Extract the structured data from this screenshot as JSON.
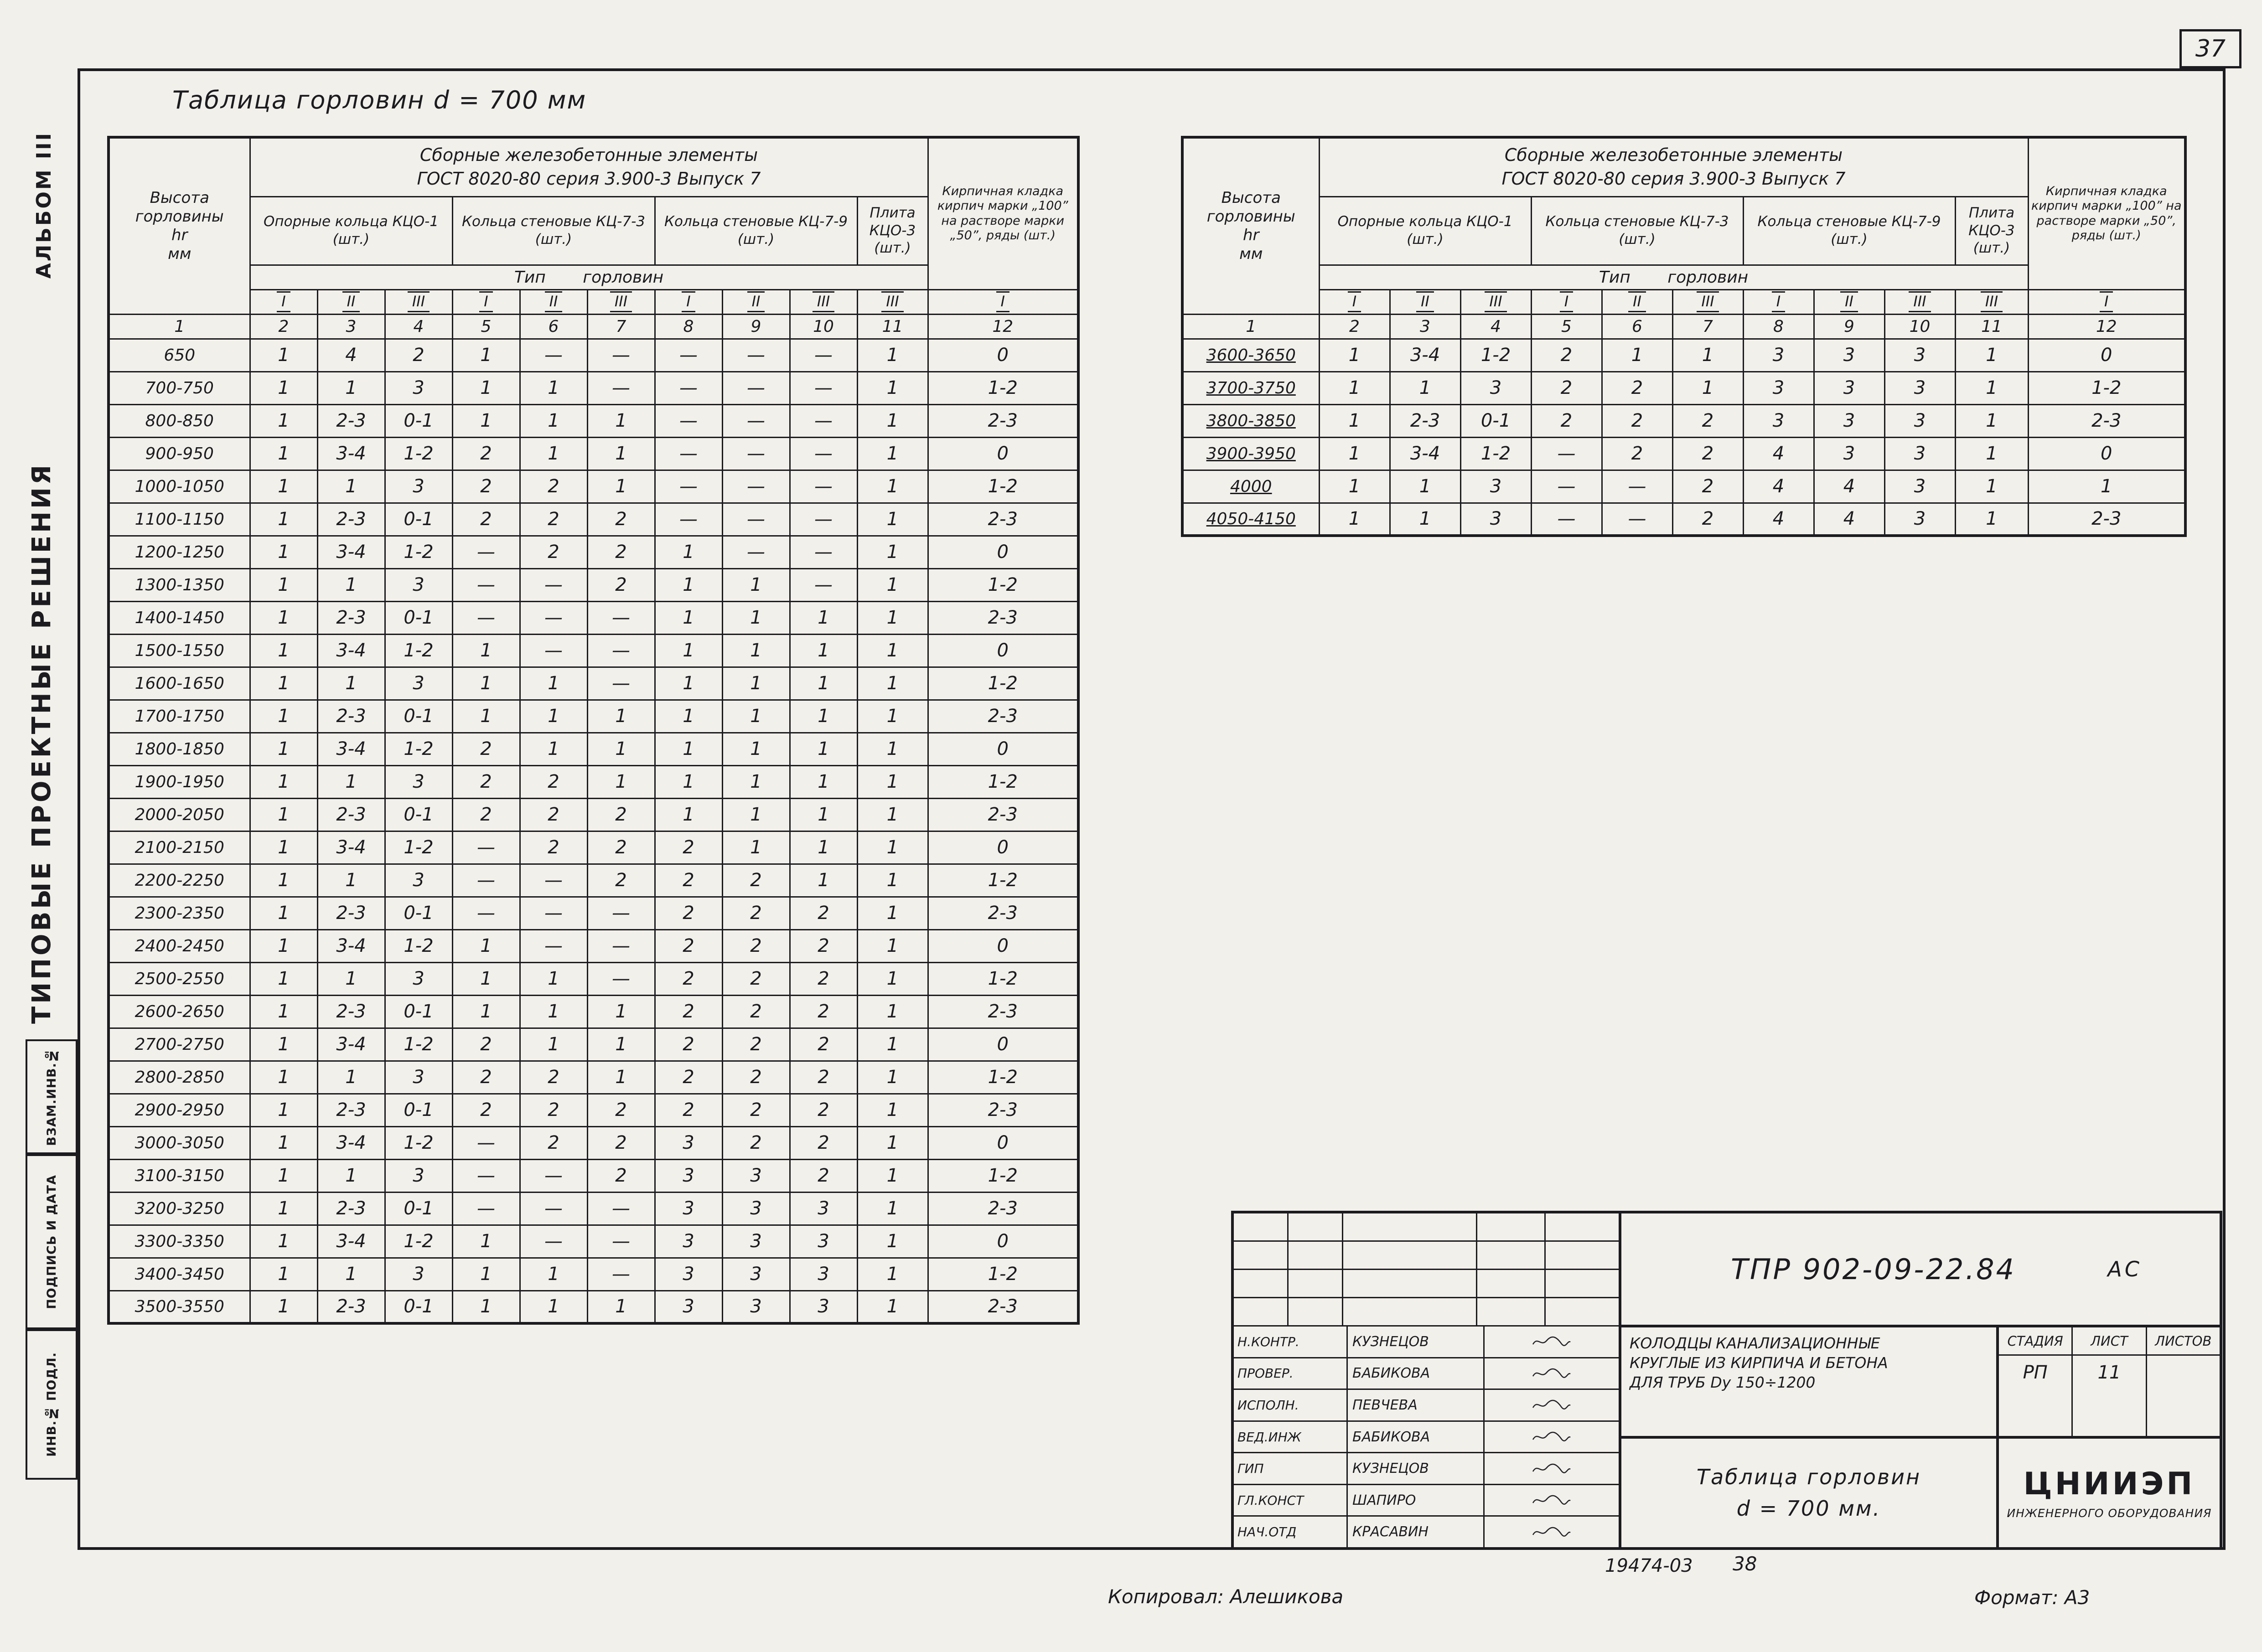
{
  "page_number": "37",
  "margin": {
    "album": "АЛЬБОМ III",
    "series": "ТИПОВЫЕ ПРОЕКТНЫЕ РЕШЕНИЯ",
    "stamp_boxes": [
      "ВЗАМ.ИНВ.№",
      "ПОДПИСЬ И ДАТА",
      "ИНВ.№ ПОДЛ."
    ]
  },
  "main_title": "Таблица горловин d = 700 мм",
  "table_template": {
    "height_header": "Высота\nгорловины\nhr\nмм",
    "group_header_line1": "Сборные железобетонные элементы",
    "group_header_line2": "ГОСТ 8020-80   серия 3.900-3   Выпуск 7",
    "col_groups": [
      {
        "label": "Опорные кольца КЦО-1 (шт.)"
      },
      {
        "label": "Кольца стеновые КЦ-7-3 (шт.)"
      },
      {
        "label": "Кольца стеновые КЦ-7-9 (шт.)"
      },
      {
        "label": "Плита КЦО-3 (шт.)"
      }
    ],
    "brick_header": "Кирпичная кладка кирпич марки „100” на растворе марки „50”, ряды (шт.)",
    "type_row_label": "Тип горловин",
    "roman_row": [
      "I",
      "II",
      "III",
      "I",
      "II",
      "III",
      "I",
      "II",
      "III",
      "III",
      "I"
    ],
    "number_row": [
      "1",
      "2",
      "3",
      "4",
      "5",
      "6",
      "7",
      "8",
      "9",
      "10",
      "11",
      "12"
    ]
  },
  "left_table": {
    "rows": [
      {
        "height": "650",
        "values": [
          "1",
          "4",
          "2",
          "1",
          "—",
          "—",
          "—",
          "—",
          "—",
          "1",
          "0"
        ]
      },
      {
        "height": "700-750",
        "values": [
          "1",
          "1",
          "3",
          "1",
          "1",
          "—",
          "—",
          "—",
          "—",
          "1",
          "1-2"
        ]
      },
      {
        "height": "800-850",
        "values": [
          "1",
          "2-3",
          "0-1",
          "1",
          "1",
          "1",
          "—",
          "—",
          "—",
          "1",
          "2-3"
        ]
      },
      {
        "height": "900-950",
        "values": [
          "1",
          "3-4",
          "1-2",
          "2",
          "1",
          "1",
          "—",
          "—",
          "—",
          "1",
          "0"
        ]
      },
      {
        "height": "1000-1050",
        "values": [
          "1",
          "1",
          "3",
          "2",
          "2",
          "1",
          "—",
          "—",
          "—",
          "1",
          "1-2"
        ]
      },
      {
        "height": "1100-1150",
        "values": [
          "1",
          "2-3",
          "0-1",
          "2",
          "2",
          "2",
          "—",
          "—",
          "—",
          "1",
          "2-3"
        ]
      },
      {
        "height": "1200-1250",
        "values": [
          "1",
          "3-4",
          "1-2",
          "—",
          "2",
          "2",
          "1",
          "—",
          "—",
          "1",
          "0"
        ]
      },
      {
        "height": "1300-1350",
        "values": [
          "1",
          "1",
          "3",
          "—",
          "—",
          "2",
          "1",
          "1",
          "—",
          "1",
          "1-2"
        ]
      },
      {
        "height": "1400-1450",
        "values": [
          "1",
          "2-3",
          "0-1",
          "—",
          "—",
          "—",
          "1",
          "1",
          "1",
          "1",
          "2-3"
        ]
      },
      {
        "height": "1500-1550",
        "values": [
          "1",
          "3-4",
          "1-2",
          "1",
          "—",
          "—",
          "1",
          "1",
          "1",
          "1",
          "0"
        ]
      },
      {
        "height": "1600-1650",
        "values": [
          "1",
          "1",
          "3",
          "1",
          "1",
          "—",
          "1",
          "1",
          "1",
          "1",
          "1-2"
        ]
      },
      {
        "height": "1700-1750",
        "values": [
          "1",
          "2-3",
          "0-1",
          "1",
          "1",
          "1",
          "1",
          "1",
          "1",
          "1",
          "2-3"
        ]
      },
      {
        "height": "1800-1850",
        "values": [
          "1",
          "3-4",
          "1-2",
          "2",
          "1",
          "1",
          "1",
          "1",
          "1",
          "1",
          "0"
        ]
      },
      {
        "height": "1900-1950",
        "values": [
          "1",
          "1",
          "3",
          "2",
          "2",
          "1",
          "1",
          "1",
          "1",
          "1",
          "1-2"
        ]
      },
      {
        "height": "2000-2050",
        "values": [
          "1",
          "2-3",
          "0-1",
          "2",
          "2",
          "2",
          "1",
          "1",
          "1",
          "1",
          "2-3"
        ]
      },
      {
        "height": "2100-2150",
        "values": [
          "1",
          "3-4",
          "1-2",
          "—",
          "2",
          "2",
          "2",
          "1",
          "1",
          "1",
          "0"
        ]
      },
      {
        "height": "2200-2250",
        "values": [
          "1",
          "1",
          "3",
          "—",
          "—",
          "2",
          "2",
          "2",
          "1",
          "1",
          "1-2"
        ]
      },
      {
        "height": "2300-2350",
        "values": [
          "1",
          "2-3",
          "0-1",
          "—",
          "—",
          "—",
          "2",
          "2",
          "2",
          "1",
          "2-3"
        ]
      },
      {
        "height": "2400-2450",
        "values": [
          "1",
          "3-4",
          "1-2",
          "1",
          "—",
          "—",
          "2",
          "2",
          "2",
          "1",
          "0"
        ]
      },
      {
        "height": "2500-2550",
        "values": [
          "1",
          "1",
          "3",
          "1",
          "1",
          "—",
          "2",
          "2",
          "2",
          "1",
          "1-2"
        ]
      },
      {
        "height": "2600-2650",
        "values": [
          "1",
          "2-3",
          "0-1",
          "1",
          "1",
          "1",
          "2",
          "2",
          "2",
          "1",
          "2-3"
        ]
      },
      {
        "height": "2700-2750",
        "values": [
          "1",
          "3-4",
          "1-2",
          "2",
          "1",
          "1",
          "2",
          "2",
          "2",
          "1",
          "0"
        ]
      },
      {
        "height": "2800-2850",
        "values": [
          "1",
          "1",
          "3",
          "2",
          "2",
          "1",
          "2",
          "2",
          "2",
          "1",
          "1-2"
        ]
      },
      {
        "height": "2900-2950",
        "values": [
          "1",
          "2-3",
          "0-1",
          "2",
          "2",
          "2",
          "2",
          "2",
          "2",
          "1",
          "2-3"
        ]
      },
      {
        "height": "3000-3050",
        "values": [
          "1",
          "3-4",
          "1-2",
          "—",
          "2",
          "2",
          "3",
          "2",
          "2",
          "1",
          "0"
        ]
      },
      {
        "height": "3100-3150",
        "values": [
          "1",
          "1",
          "3",
          "—",
          "—",
          "2",
          "3",
          "3",
          "2",
          "1",
          "1-2"
        ]
      },
      {
        "height": "3200-3250",
        "values": [
          "1",
          "2-3",
          "0-1",
          "—",
          "—",
          "—",
          "3",
          "3",
          "3",
          "1",
          "2-3"
        ]
      },
      {
        "height": "3300-3350",
        "values": [
          "1",
          "3-4",
          "1-2",
          "1",
          "—",
          "—",
          "3",
          "3",
          "3",
          "1",
          "0"
        ]
      },
      {
        "height": "3400-3450",
        "values": [
          "1",
          "1",
          "3",
          "1",
          "1",
          "—",
          "3",
          "3",
          "3",
          "1",
          "1-2"
        ]
      },
      {
        "height": "3500-3550",
        "values": [
          "1",
          "2-3",
          "0-1",
          "1",
          "1",
          "1",
          "3",
          "3",
          "3",
          "1",
          "2-3"
        ]
      }
    ]
  },
  "right_table": {
    "rows": [
      {
        "height": "3600-3650",
        "values": [
          "1",
          "3-4",
          "1-2",
          "2",
          "1",
          "1",
          "3",
          "3",
          "3",
          "1",
          "0"
        ]
      },
      {
        "height": "3700-3750",
        "values": [
          "1",
          "1",
          "3",
          "2",
          "2",
          "1",
          "3",
          "3",
          "3",
          "1",
          "1-2"
        ]
      },
      {
        "height": "3800-3850",
        "values": [
          "1",
          "2-3",
          "0-1",
          "2",
          "2",
          "2",
          "3",
          "3",
          "3",
          "1",
          "2-3"
        ]
      },
      {
        "height": "3900-3950",
        "values": [
          "1",
          "3-4",
          "1-2",
          "—",
          "2",
          "2",
          "4",
          "3",
          "3",
          "1",
          "0"
        ]
      },
      {
        "height": "4000",
        "values": [
          "1",
          "1",
          "3",
          "—",
          "—",
          "2",
          "4",
          "4",
          "3",
          "1",
          "1"
        ]
      },
      {
        "height": "4050-4150",
        "values": [
          "1",
          "1",
          "3",
          "—",
          "—",
          "2",
          "4",
          "4",
          "3",
          "1",
          "2-3"
        ]
      }
    ]
  },
  "title_block": {
    "doc_number": "ТПР 902-09-22.84",
    "doc_suffix": "АС",
    "signature_rows": [
      {
        "role": "Н.КОНТР.",
        "name": "КУЗНЕЦОВ"
      },
      {
        "role": "ПРОВЕР.",
        "name": "БАБИКОВА"
      },
      {
        "role": "ИСПОЛН.",
        "name": "ПЕВЧЕВА"
      },
      {
        "role": "ВЕД.ИНЖ",
        "name": "БАБИКОВА"
      },
      {
        "role": "ГИП",
        "name": "КУЗНЕЦОВ"
      },
      {
        "role": "ГЛ.КОНСТ",
        "name": "ШАПИРО"
      },
      {
        "role": "НАЧ.ОТД",
        "name": "КРАСАВИН"
      }
    ],
    "project_title": "КОЛОДЦЫ КАНАЛИЗАЦИОННЫЕ\nКРУГЛЫЕ ИЗ КИРПИЧА И БЕТОНА\nДЛЯ ТРУБ Dy 150÷1200",
    "sheet_title_line1": "Таблица горловин",
    "sheet_title_line2": "d = 700 мм.",
    "stage_label": "СТАДИЯ",
    "sheet_label": "ЛИСТ",
    "sheets_label": "ЛИСТОВ",
    "stage_value": "РП",
    "sheet_value": "11",
    "sheets_value": "",
    "org_line1": "ЦНИИЭП",
    "org_line2": "ИНЖЕНЕРНОГО ОБОРУДОВАНИЯ"
  },
  "footer": {
    "order_number": "19474-03",
    "sheet_note": "38",
    "copied_by": "Копировал: Алешикова",
    "format": "Формат: А3"
  }
}
